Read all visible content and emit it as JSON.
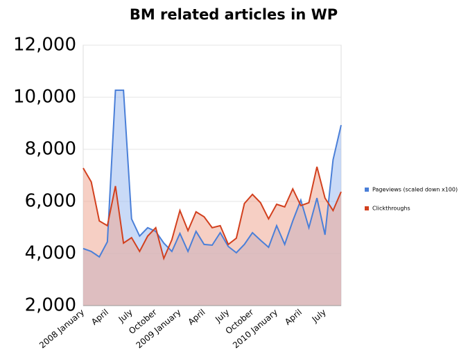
{
  "chart_data": {
    "type": "area",
    "title": "BM related articles in WP",
    "categories": [
      "2008 January",
      null,
      null,
      "April",
      null,
      null,
      "July",
      null,
      null,
      "October",
      null,
      null,
      "2009 January",
      null,
      null,
      "April",
      null,
      null,
      "July",
      null,
      null,
      "October",
      null,
      null,
      "2010 January",
      null,
      null,
      "April",
      null,
      null,
      "July",
      null,
      null
    ],
    "series": [
      {
        "name": "Pageviews (scaled down x100)",
        "color": "#4a7fd8",
        "fill": "#9dbbf0",
        "values": [
          4190,
          4080,
          3870,
          4450,
          10270,
          10270,
          5330,
          4670,
          4990,
          4850,
          4400,
          4080,
          4770,
          4080,
          4850,
          4350,
          4320,
          4800,
          4270,
          4030,
          4350,
          4800,
          4510,
          4240,
          5070,
          4350,
          5250,
          6050,
          4990,
          6130,
          4720,
          7600,
          8930
        ]
      },
      {
        "name": "Clickthroughs",
        "color": "#d2401e",
        "fill": "#eea894",
        "values": [
          7280,
          6750,
          5250,
          5070,
          6590,
          4400,
          4610,
          4080,
          4670,
          4990,
          3810,
          4530,
          5650,
          4880,
          5600,
          5410,
          4990,
          5070,
          4350,
          4590,
          5920,
          6270,
          5950,
          5330,
          5890,
          5790,
          6480,
          5840,
          5950,
          7330,
          6130,
          5650,
          6370
        ]
      }
    ],
    "ylim": [
      2000,
      12000
    ],
    "yticks": [
      {
        "value": 2000,
        "label": "2,000"
      },
      {
        "value": 4000,
        "label": "4,000"
      },
      {
        "value": 6000,
        "label": "6,000"
      },
      {
        "value": 8000,
        "label": "8,000"
      },
      {
        "value": 10000,
        "label": "10,000"
      },
      {
        "value": 12000,
        "label": "12,000"
      }
    ],
    "grid": true,
    "legend": "right"
  }
}
